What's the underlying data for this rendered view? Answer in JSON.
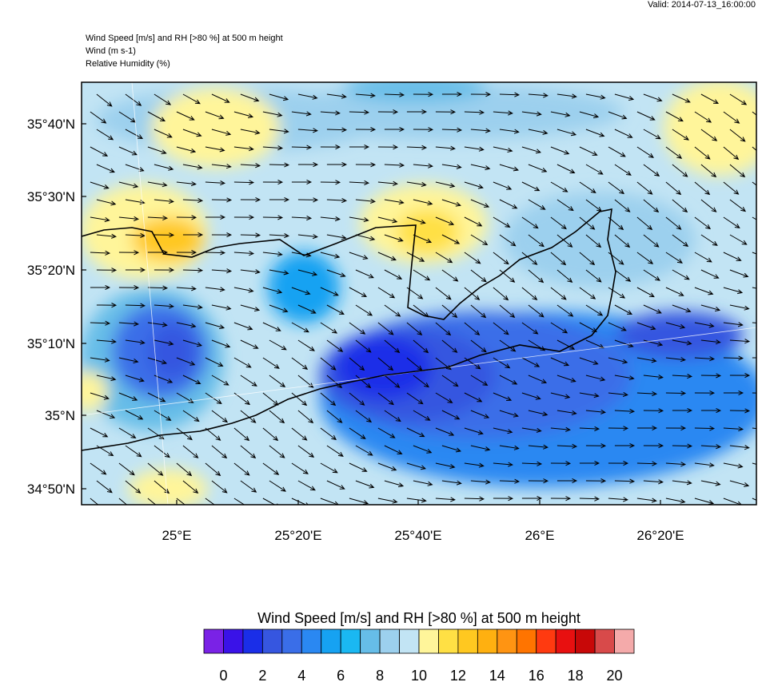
{
  "header": {
    "valid": "Valid: 2014-07-13_16:00:00",
    "lines": [
      "Wind Speed [m/s] and RH [>80 %] at 500 m height",
      "Wind   (m s-1)",
      "Relative Humidity   (%)"
    ]
  },
  "map": {
    "lat_labels": [
      "35°40'N",
      "35°30'N",
      "35°20'N",
      "35°10'N",
      "35°N",
      "34°50'N"
    ],
    "lon_labels": [
      "25°E",
      "25°20'E",
      "25°40'E",
      "26°E",
      "26°20'E"
    ]
  },
  "colorbar": {
    "title": "Wind Speed [m/s] and RH [>80 %] at 500 m height",
    "colors": [
      "#7a22e6",
      "#3a12e8",
      "#1a2ee8",
      "#3656e0",
      "#3a6ee8",
      "#2a88f2",
      "#16a2f2",
      "#1ab8f2",
      "#66bde8",
      "#9cd0ee",
      "#c2e4f4",
      "#fff59a",
      "#ffe044",
      "#ffc820",
      "#ffb010",
      "#ff9412",
      "#ff7400",
      "#ff3a10",
      "#e81010",
      "#c80808",
      "#d84a4a",
      "#f4aaaa"
    ],
    "ticks": [
      0,
      2,
      4,
      6,
      8,
      10,
      12,
      14,
      16,
      18,
      20
    ]
  }
}
